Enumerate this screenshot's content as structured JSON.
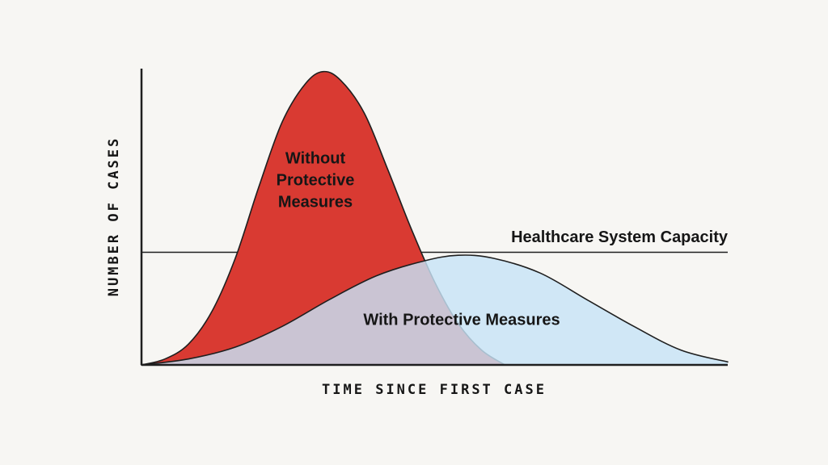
{
  "chart_data": {
    "type": "area",
    "title": "",
    "xlabel": "TIME SINCE FIRST CASE",
    "ylabel": "NUMBER OF CASES",
    "xlim": [
      0,
      100
    ],
    "ylim": [
      0,
      100
    ],
    "grid": false,
    "legend_position": "inline-annotations",
    "axis_color": "#1f1f1f",
    "capacity_line": {
      "label": "Healthcare System Capacity",
      "value": 38,
      "color": "#1f1f1f"
    },
    "series": [
      {
        "name": "Without Protective Measures",
        "color": "#d93a32",
        "fill_opacity": 1,
        "x": [
          0,
          4,
          8,
          12,
          16,
          20,
          24,
          28,
          31,
          34,
          38,
          42,
          46,
          50,
          54,
          58,
          62
        ],
        "y": [
          0,
          2,
          7,
          18,
          36,
          60,
          82,
          95,
          99,
          96,
          85,
          66,
          46,
          28,
          14,
          5,
          0
        ]
      },
      {
        "name": "With Protective Measures",
        "color": "#c7e3f7",
        "fill_opacity": 0.82,
        "x": [
          0,
          8,
          16,
          24,
          32,
          40,
          48,
          54,
          60,
          68,
          76,
          84,
          92,
          100
        ],
        "y": [
          0,
          2,
          6,
          13,
          22,
          30,
          35,
          37,
          36,
          31,
          22,
          13,
          5,
          1
        ]
      }
    ]
  },
  "page": {
    "background": "#f7f6f3"
  }
}
